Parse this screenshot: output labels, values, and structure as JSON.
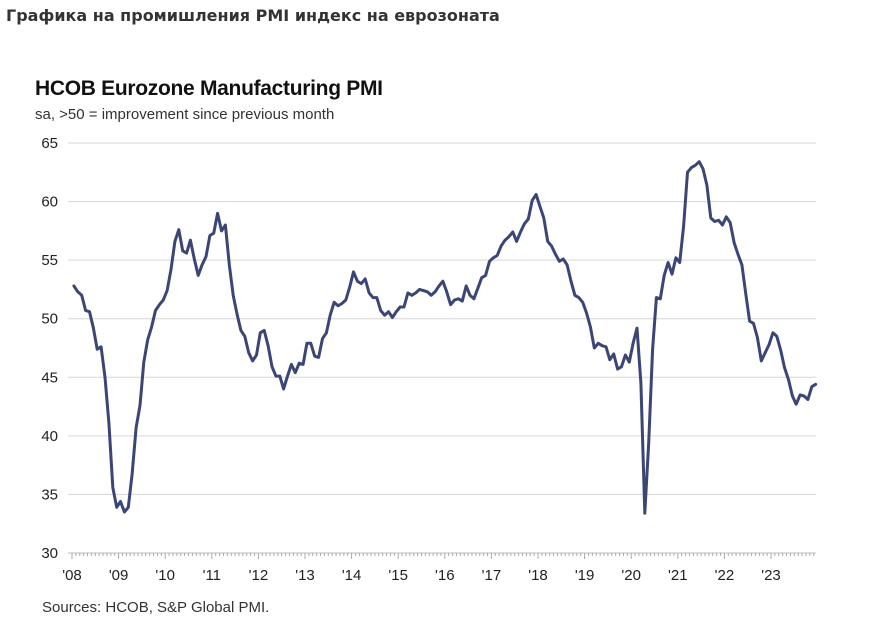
{
  "page_title": "Графика на промишления PMI индекс на еврозоната",
  "chart_data": {
    "type": "line",
    "title": "HCOB Eurozone Manufacturing PMI",
    "subtitle": "sa, >50 = improvement  since previous month",
    "source": "Sources: HCOB, S&P Global PMI.",
    "xlabel": "",
    "ylabel": "",
    "ylim": [
      30,
      65
    ],
    "yticks": [
      30,
      35,
      40,
      45,
      50,
      55,
      60,
      65
    ],
    "xticks": [
      "'08",
      "'09",
      "'10",
      "'11",
      "'12",
      "'13",
      "'14",
      "'15",
      "'16",
      "'17",
      "'18",
      "'19",
      "'20",
      "'21",
      "'22",
      "'23"
    ],
    "grid": true,
    "line_color": "#3b4676",
    "start": "2008-01",
    "frequency": "monthly",
    "series": [
      {
        "name": "HCOB Eurozone Manufacturing PMI",
        "values": [
          52.8,
          52.3,
          52.0,
          50.7,
          50.6,
          49.2,
          47.4,
          47.6,
          45.0,
          41.1,
          35.6,
          33.9,
          34.4,
          33.5,
          33.9,
          36.8,
          40.7,
          42.6,
          46.3,
          48.2,
          49.3,
          50.7,
          51.2,
          51.6,
          52.4,
          54.2,
          56.6,
          57.6,
          55.8,
          55.6,
          56.7,
          55.1,
          53.7,
          54.6,
          55.3,
          57.1,
          57.3,
          59.0,
          57.5,
          58.0,
          54.6,
          52.0,
          50.4,
          49.0,
          48.5,
          47.1,
          46.4,
          46.9,
          48.8,
          49.0,
          47.7,
          45.9,
          45.1,
          45.1,
          44.0,
          45.1,
          46.1,
          45.4,
          46.2,
          46.1,
          47.9,
          47.9,
          46.8,
          46.7,
          48.3,
          48.8,
          50.3,
          51.4,
          51.1,
          51.3,
          51.6,
          52.7,
          54.0,
          53.2,
          53.0,
          53.4,
          52.2,
          51.8,
          51.8,
          50.7,
          50.3,
          50.6,
          50.1,
          50.6,
          51.0,
          51.0,
          52.2,
          52.0,
          52.2,
          52.5,
          52.4,
          52.3,
          52.0,
          52.3,
          52.8,
          53.2,
          52.3,
          51.2,
          51.6,
          51.7,
          51.5,
          52.8,
          52.0,
          51.7,
          52.6,
          53.5,
          53.7,
          54.9,
          55.2,
          55.4,
          56.2,
          56.7,
          57.0,
          57.4,
          56.6,
          57.4,
          58.1,
          58.5,
          60.1,
          60.6,
          59.6,
          58.6,
          56.6,
          56.2,
          55.5,
          54.9,
          55.1,
          54.6,
          53.2,
          52.0,
          51.8,
          51.4,
          50.5,
          49.3,
          47.5,
          47.9,
          47.7,
          47.6,
          46.5,
          47.0,
          45.7,
          45.9,
          46.9,
          46.3,
          47.9,
          49.2,
          44.5,
          33.4,
          39.4,
          47.4,
          51.8,
          51.7,
          53.7,
          54.8,
          53.8,
          55.2,
          54.8,
          57.9,
          62.5,
          62.9,
          63.1,
          63.4,
          62.8,
          61.4,
          58.6,
          58.3,
          58.4,
          58.0,
          58.7,
          58.2,
          56.5,
          55.5,
          54.6,
          52.1,
          49.8,
          49.6,
          48.4,
          46.4,
          47.1,
          47.8,
          48.8,
          48.5,
          47.3,
          45.8,
          44.8,
          43.4,
          42.7,
          43.5,
          43.4,
          43.1,
          44.2,
          44.4
        ]
      }
    ]
  }
}
